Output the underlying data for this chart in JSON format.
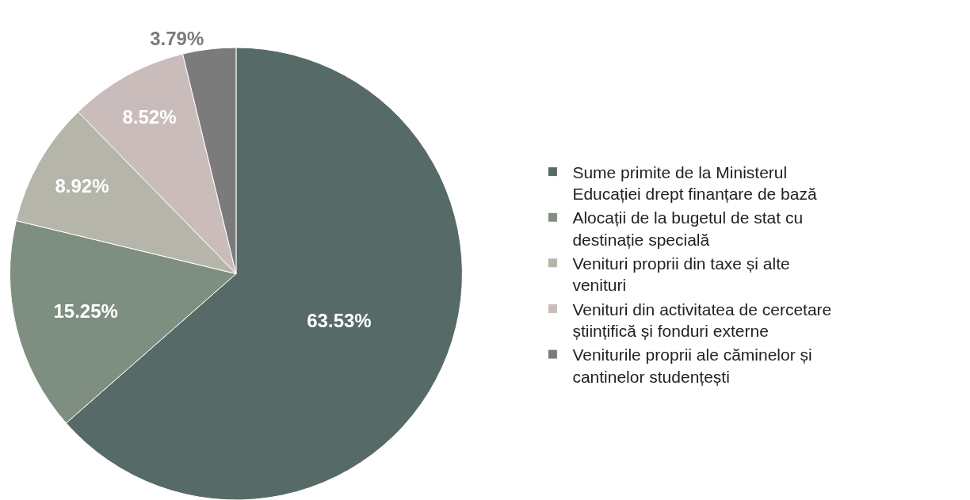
{
  "chart_data": {
    "type": "pie",
    "categories": [
      "Sume primite de la Ministerul Educației drept finanțare de bază",
      "Alocații de la bugetul de stat cu destinație specială",
      "Venituri proprii din taxe și alte venituri",
      "Venituri din activitatea de cercetare științifică și fonduri externe",
      "Veniturile proprii ale căminelor și cantinelor studențești"
    ],
    "values": [
      63.53,
      15.25,
      8.92,
      8.52,
      3.79
    ],
    "value_labels": [
      "63.53%",
      "15.25%",
      "8.92%",
      "8.52%",
      "3.79%"
    ],
    "colors": [
      "#566a67",
      "#7e8f82",
      "#b5b6a9",
      "#cbbcbc",
      "#7b7b7b"
    ],
    "legend": "right"
  }
}
